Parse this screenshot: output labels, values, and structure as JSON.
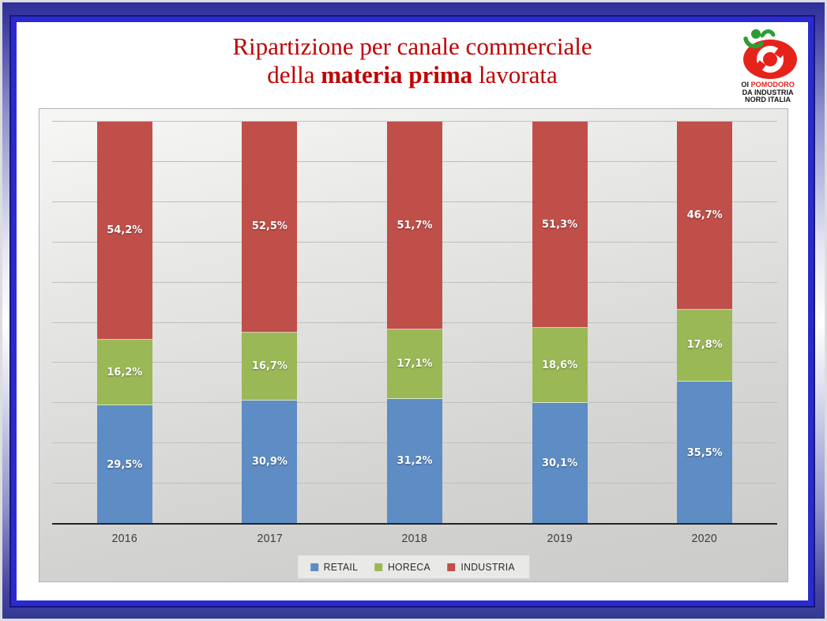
{
  "title": {
    "line1": "Ripartizione per canale commerciale",
    "line2_prefix": "della ",
    "line2_bold": "materia prima",
    "line2_suffix": " lavorata",
    "color": "#C00000"
  },
  "logo": {
    "line1_black": "OI",
    "line1_red": "POMODORO",
    "line2": "DA INDUSTRIA",
    "line3": "NORD  ITALIA",
    "red": "#E5231B",
    "green": "#2E9C34"
  },
  "chart_data": {
    "type": "bar",
    "variant": "stacked-100-percent-column",
    "title": "Ripartizione per canale commerciale della materia prima lavorata",
    "categories": [
      "2016",
      "2017",
      "2018",
      "2019",
      "2020"
    ],
    "series": [
      {
        "name": "RETAIL",
        "color": "#5E8CC4",
        "values": [
          29.5,
          30.9,
          31.2,
          30.1,
          35.5
        ],
        "labels": [
          "29,5%",
          "30,9%",
          "31,2%",
          "30,1%",
          "35,5%"
        ]
      },
      {
        "name": "HORECA",
        "color": "#9BB857",
        "values": [
          16.2,
          16.7,
          17.1,
          18.6,
          17.8
        ],
        "labels": [
          "16,2%",
          "16,7%",
          "17,1%",
          "18,6%",
          "17,8%"
        ]
      },
      {
        "name": "INDUSTRIA",
        "color": "#C04F4A",
        "values": [
          54.2,
          52.5,
          51.7,
          51.3,
          46.7
        ],
        "labels": [
          "54,2%",
          "52,5%",
          "51,7%",
          "51,3%",
          "46,7%"
        ]
      }
    ],
    "xlabel": "",
    "ylabel": "",
    "ylim": [
      0,
      100
    ],
    "grid": true,
    "gridline_step_percent": 10,
    "legend_position": "bottom",
    "axis_line_color": "#242424",
    "gridline_color": "#BFBFBD",
    "plot_background": "#DDDDDB"
  }
}
